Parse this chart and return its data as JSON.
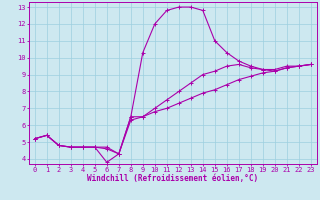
{
  "xlabel": "Windchill (Refroidissement éolien,°C)",
  "background_color": "#cde8f0",
  "line_color": "#aa00aa",
  "xlim": [
    -0.5,
    23.5
  ],
  "ylim": [
    3.7,
    13.3
  ],
  "xticks": [
    0,
    1,
    2,
    3,
    4,
    5,
    6,
    7,
    8,
    9,
    10,
    11,
    12,
    13,
    14,
    15,
    16,
    17,
    18,
    19,
    20,
    21,
    22,
    23
  ],
  "yticks": [
    4,
    5,
    6,
    7,
    8,
    9,
    10,
    11,
    12,
    13
  ],
  "line1_x": [
    0,
    1,
    2,
    3,
    4,
    5,
    6,
    7,
    8,
    9,
    10,
    11,
    12,
    13,
    14,
    15,
    16,
    17,
    18,
    19,
    20,
    21,
    22,
    23
  ],
  "line1_y": [
    5.2,
    5.4,
    4.8,
    4.7,
    4.7,
    4.7,
    3.8,
    4.3,
    6.5,
    10.3,
    12.0,
    12.8,
    13.0,
    13.0,
    12.8,
    11.0,
    10.3,
    9.8,
    9.5,
    9.3,
    9.3,
    9.5,
    9.5,
    9.6
  ],
  "line2_x": [
    0,
    1,
    2,
    3,
    4,
    5,
    6,
    7,
    8,
    9,
    10,
    11,
    12,
    13,
    14,
    15,
    16,
    17,
    18,
    19,
    20,
    21,
    22,
    23
  ],
  "line2_y": [
    5.2,
    5.4,
    4.8,
    4.7,
    4.7,
    4.7,
    4.6,
    4.3,
    6.3,
    6.5,
    6.8,
    7.0,
    7.3,
    7.6,
    7.9,
    8.1,
    8.4,
    8.7,
    8.9,
    9.1,
    9.2,
    9.4,
    9.5,
    9.6
  ],
  "line3_x": [
    0,
    1,
    2,
    3,
    4,
    5,
    6,
    7,
    8,
    9,
    10,
    11,
    12,
    13,
    14,
    15,
    16,
    17,
    18,
    19,
    20,
    21,
    22,
    23
  ],
  "line3_y": [
    5.2,
    5.4,
    4.8,
    4.7,
    4.7,
    4.7,
    4.7,
    4.3,
    6.5,
    6.5,
    7.0,
    7.5,
    8.0,
    8.5,
    9.0,
    9.2,
    9.5,
    9.6,
    9.4,
    9.3,
    9.2,
    9.4,
    9.5,
    9.6
  ],
  "grid_color": "#9dcfdf",
  "tick_fontsize": 5.0,
  "xlabel_fontsize": 5.5,
  "linewidth": 0.8,
  "marker_size": 3.0
}
